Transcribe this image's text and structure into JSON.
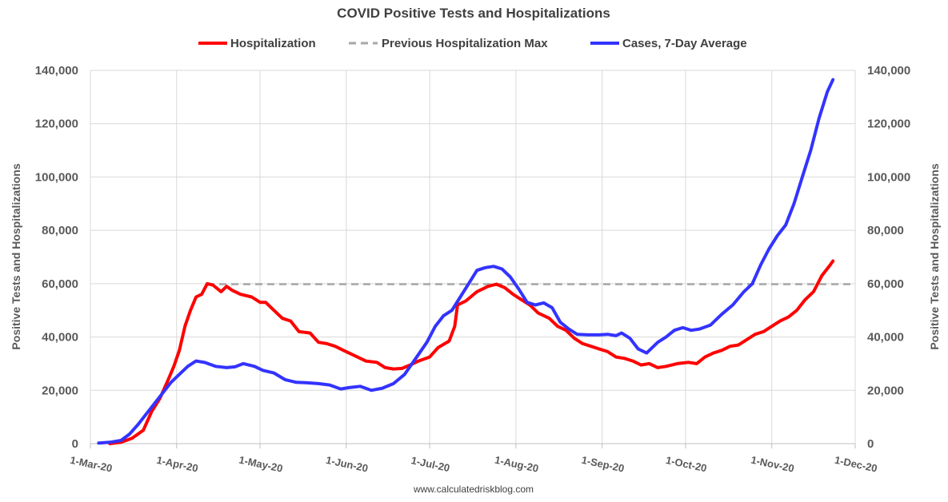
{
  "chart_data": {
    "type": "line",
    "title": "COVID Positive Tests and Hospitalizations",
    "ylabel_left": "Positive Tests and Hospitalizations",
    "ylabel_right": "Positive Tests and Hospitalizations",
    "xlabel": "",
    "ylim": [
      0,
      140000
    ],
    "y_ticks": [
      "0",
      "20,000",
      "40,000",
      "60,000",
      "80,000",
      "100,000",
      "120,000",
      "140,000"
    ],
    "y_tick_values": [
      0,
      20000,
      40000,
      60000,
      80000,
      100000,
      120000,
      140000
    ],
    "x_ticks": [
      "1-Mar-20",
      "1-Apr-20",
      "1-May-20",
      "1-Jun-20",
      "1-Jul-20",
      "1-Aug-20",
      "1-Sep-20",
      "1-Oct-20",
      "1-Nov-20",
      "1-Dec-20"
    ],
    "x_tick_dates": [
      "2020-03-01",
      "2020-04-01",
      "2020-05-01",
      "2020-06-01",
      "2020-07-01",
      "2020-08-01",
      "2020-09-01",
      "2020-10-01",
      "2020-11-01",
      "2020-12-01"
    ],
    "grid": true,
    "legend_position": "top",
    "credit": "www.calculatedriskblog.com",
    "series": [
      {
        "name": "Hospitalization",
        "color": "#ff0000",
        "style": "solid",
        "points": [
          [
            "2020-03-08",
            0
          ],
          [
            "2020-03-12",
            500
          ],
          [
            "2020-03-16",
            2000
          ],
          [
            "2020-03-20",
            5000
          ],
          [
            "2020-03-23",
            12000
          ],
          [
            "2020-03-26",
            17000
          ],
          [
            "2020-03-29",
            24000
          ],
          [
            "2020-03-31",
            29000
          ],
          [
            "2020-04-02",
            35000
          ],
          [
            "2020-04-04",
            44000
          ],
          [
            "2020-04-06",
            50000
          ],
          [
            "2020-04-08",
            55000
          ],
          [
            "2020-04-10",
            56000
          ],
          [
            "2020-04-12",
            60000
          ],
          [
            "2020-04-14",
            59500
          ],
          [
            "2020-04-17",
            57000
          ],
          [
            "2020-04-19",
            59000
          ],
          [
            "2020-04-21",
            57500
          ],
          [
            "2020-04-24",
            56000
          ],
          [
            "2020-04-28",
            55000
          ],
          [
            "2020-05-01",
            53000
          ],
          [
            "2020-05-03",
            53000
          ],
          [
            "2020-05-06",
            50000
          ],
          [
            "2020-05-09",
            47000
          ],
          [
            "2020-05-12",
            46000
          ],
          [
            "2020-05-15",
            42000
          ],
          [
            "2020-05-19",
            41500
          ],
          [
            "2020-05-22",
            38000
          ],
          [
            "2020-05-25",
            37500
          ],
          [
            "2020-05-28",
            36500
          ],
          [
            "2020-05-31",
            35000
          ],
          [
            "2020-06-04",
            33000
          ],
          [
            "2020-06-08",
            31000
          ],
          [
            "2020-06-12",
            30500
          ],
          [
            "2020-06-15",
            28500
          ],
          [
            "2020-06-18",
            28000
          ],
          [
            "2020-06-21",
            28200
          ],
          [
            "2020-06-24",
            29500
          ],
          [
            "2020-06-27",
            31000
          ],
          [
            "2020-07-01",
            32500
          ],
          [
            "2020-07-04",
            36000
          ],
          [
            "2020-07-08",
            38500
          ],
          [
            "2020-07-10",
            44000
          ],
          [
            "2020-07-11",
            52000
          ],
          [
            "2020-07-14",
            53500
          ],
          [
            "2020-07-18",
            57000
          ],
          [
            "2020-07-22",
            59000
          ],
          [
            "2020-07-25",
            59800
          ],
          [
            "2020-07-28",
            58500
          ],
          [
            "2020-07-31",
            56000
          ],
          [
            "2020-08-03",
            54000
          ],
          [
            "2020-08-06",
            52000
          ],
          [
            "2020-08-09",
            49000
          ],
          [
            "2020-08-13",
            47000
          ],
          [
            "2020-08-16",
            44000
          ],
          [
            "2020-08-19",
            42500
          ],
          [
            "2020-08-22",
            39500
          ],
          [
            "2020-08-25",
            37500
          ],
          [
            "2020-08-28",
            36500
          ],
          [
            "2020-08-31",
            35500
          ],
          [
            "2020-09-03",
            34500
          ],
          [
            "2020-09-06",
            32500
          ],
          [
            "2020-09-09",
            32000
          ],
          [
            "2020-09-12",
            31000
          ],
          [
            "2020-09-15",
            29500
          ],
          [
            "2020-09-18",
            30000
          ],
          [
            "2020-09-21",
            28500
          ],
          [
            "2020-09-24",
            29000
          ],
          [
            "2020-09-28",
            30000
          ],
          [
            "2020-10-02",
            30500
          ],
          [
            "2020-10-05",
            30000
          ],
          [
            "2020-10-08",
            32500
          ],
          [
            "2020-10-11",
            34000
          ],
          [
            "2020-10-14",
            35000
          ],
          [
            "2020-10-17",
            36500
          ],
          [
            "2020-10-20",
            37000
          ],
          [
            "2020-10-23",
            39000
          ],
          [
            "2020-10-26",
            41000
          ],
          [
            "2020-10-29",
            42000
          ],
          [
            "2020-11-01",
            44000
          ],
          [
            "2020-11-04",
            46000
          ],
          [
            "2020-11-07",
            47500
          ],
          [
            "2020-11-10",
            50000
          ],
          [
            "2020-11-13",
            54000
          ],
          [
            "2020-11-16",
            57000
          ],
          [
            "2020-11-19",
            63000
          ],
          [
            "2020-11-22",
            67000
          ],
          [
            "2020-11-23",
            68500
          ]
        ]
      },
      {
        "name": "Previous Hospitalization Max",
        "color": "#a6a6a6",
        "style": "dashed",
        "points": [
          [
            "2020-04-12",
            59800
          ],
          [
            "2020-11-30",
            59800
          ]
        ]
      },
      {
        "name": "Cases, 7-Day Average",
        "color": "#3333ff",
        "style": "solid",
        "points": [
          [
            "2020-03-04",
            200
          ],
          [
            "2020-03-08",
            500
          ],
          [
            "2020-03-12",
            1200
          ],
          [
            "2020-03-15",
            3500
          ],
          [
            "2020-03-18",
            7000
          ],
          [
            "2020-03-21",
            11000
          ],
          [
            "2020-03-24",
            15000
          ],
          [
            "2020-03-27",
            19000
          ],
          [
            "2020-03-30",
            23000
          ],
          [
            "2020-04-02",
            26000
          ],
          [
            "2020-04-05",
            29000
          ],
          [
            "2020-04-08",
            31000
          ],
          [
            "2020-04-11",
            30500
          ],
          [
            "2020-04-15",
            29000
          ],
          [
            "2020-04-19",
            28500
          ],
          [
            "2020-04-22",
            28800
          ],
          [
            "2020-04-25",
            30000
          ],
          [
            "2020-04-29",
            29000
          ],
          [
            "2020-05-02",
            27500
          ],
          [
            "2020-05-06",
            26500
          ],
          [
            "2020-05-10",
            24000
          ],
          [
            "2020-05-14",
            23000
          ],
          [
            "2020-05-18",
            22800
          ],
          [
            "2020-05-22",
            22500
          ],
          [
            "2020-05-26",
            22000
          ],
          [
            "2020-05-30",
            20500
          ],
          [
            "2020-06-02",
            21000
          ],
          [
            "2020-06-06",
            21500
          ],
          [
            "2020-06-10",
            20000
          ],
          [
            "2020-06-14",
            20800
          ],
          [
            "2020-06-18",
            22500
          ],
          [
            "2020-06-22",
            26000
          ],
          [
            "2020-06-26",
            32000
          ],
          [
            "2020-06-30",
            38000
          ],
          [
            "2020-07-03",
            44000
          ],
          [
            "2020-07-06",
            48000
          ],
          [
            "2020-07-09",
            50000
          ],
          [
            "2020-07-12",
            55000
          ],
          [
            "2020-07-15",
            60000
          ],
          [
            "2020-07-18",
            65000
          ],
          [
            "2020-07-21",
            66000
          ],
          [
            "2020-07-24",
            66500
          ],
          [
            "2020-07-27",
            65500
          ],
          [
            "2020-07-30",
            62500
          ],
          [
            "2020-08-02",
            58000
          ],
          [
            "2020-08-05",
            53000
          ],
          [
            "2020-08-08",
            52000
          ],
          [
            "2020-08-11",
            52800
          ],
          [
            "2020-08-14",
            51000
          ],
          [
            "2020-08-17",
            45500
          ],
          [
            "2020-08-20",
            43000
          ],
          [
            "2020-08-23",
            41000
          ],
          [
            "2020-08-27",
            40800
          ],
          [
            "2020-08-31",
            40800
          ],
          [
            "2020-09-03",
            41000
          ],
          [
            "2020-09-06",
            40500
          ],
          [
            "2020-09-08",
            41500
          ],
          [
            "2020-09-11",
            39500
          ],
          [
            "2020-09-14",
            35500
          ],
          [
            "2020-09-17",
            34000
          ],
          [
            "2020-09-21",
            38000
          ],
          [
            "2020-09-24",
            40000
          ],
          [
            "2020-09-27",
            42500
          ],
          [
            "2020-09-30",
            43500
          ],
          [
            "2020-10-03",
            42500
          ],
          [
            "2020-10-06",
            43000
          ],
          [
            "2020-10-10",
            44500
          ],
          [
            "2020-10-14",
            48500
          ],
          [
            "2020-10-18",
            52000
          ],
          [
            "2020-10-22",
            57000
          ],
          [
            "2020-10-25",
            60000
          ],
          [
            "2020-10-28",
            67000
          ],
          [
            "2020-10-31",
            73000
          ],
          [
            "2020-11-03",
            78000
          ],
          [
            "2020-11-06",
            82000
          ],
          [
            "2020-11-09",
            90000
          ],
          [
            "2020-11-12",
            100000
          ],
          [
            "2020-11-15",
            110000
          ],
          [
            "2020-11-18",
            122000
          ],
          [
            "2020-11-21",
            132000
          ],
          [
            "2020-11-23",
            136500
          ]
        ]
      }
    ]
  }
}
